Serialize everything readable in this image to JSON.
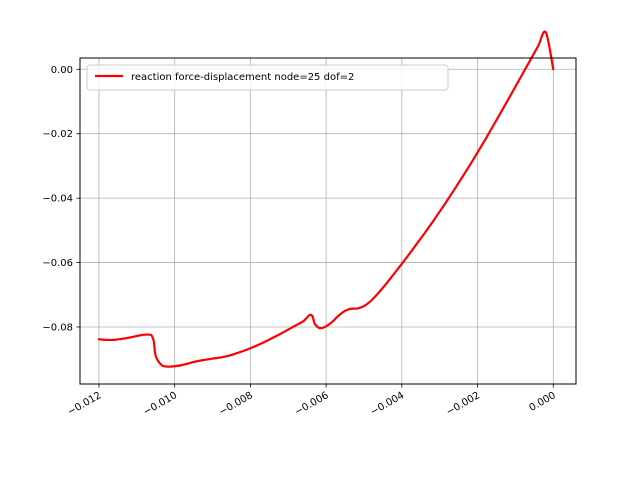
{
  "chart_data": {
    "type": "line",
    "title": "",
    "xlabel": "",
    "ylabel": "",
    "xlim": [
      -0.0125,
      0.0006
    ],
    "ylim": [
      -0.0977,
      0.0035
    ],
    "xticks": [
      -0.012,
      -0.01,
      -0.008,
      -0.006,
      -0.004,
      -0.002,
      0.0
    ],
    "xtick_labels": [
      "−0.012",
      "−0.010",
      "−0.008",
      "−0.006",
      "−0.004",
      "−0.002",
      "0.000"
    ],
    "yticks": [
      0.0,
      -0.02,
      -0.04,
      -0.06,
      -0.08
    ],
    "ytick_labels": [
      "0.00",
      "−0.02",
      "−0.04",
      "−0.06",
      "−0.08"
    ],
    "grid": true,
    "legend": "upper left",
    "series": [
      {
        "name": "reaction force-displacement node=25 dof=2",
        "color": "#ff0000",
        "x": [
          -0.012,
          -0.0118,
          -0.0116,
          -0.0114,
          -0.0112,
          -0.011,
          -0.0108,
          -0.01065,
          -0.0106,
          -0.01055,
          -0.0105,
          -0.01035,
          -0.0102,
          -0.01,
          -0.0098,
          -0.0096,
          -0.0094,
          -0.0092,
          -0.009,
          -0.0088,
          -0.0086,
          -0.0084,
          -0.0082,
          -0.008,
          -0.0078,
          -0.0076,
          -0.0074,
          -0.0072,
          -0.007,
          -0.0068,
          -0.0066,
          -0.0065,
          -0.00645,
          -0.0064,
          -0.00635,
          -0.0063,
          -0.0062,
          -0.0061,
          -0.006,
          -0.0059,
          -0.0058,
          -0.0057,
          -0.0056,
          -0.0055,
          -0.0054,
          -0.0053,
          -0.0052,
          -0.0051,
          -0.005,
          -0.0049,
          -0.0048,
          -0.0047,
          -0.0046,
          -0.0045,
          -0.0044,
          -0.0042,
          -0.004,
          -0.0038,
          -0.0036,
          -0.0034,
          -0.0032,
          -0.003,
          -0.0028,
          -0.0026,
          -0.0024,
          -0.0022,
          -0.002,
          -0.0018,
          -0.0016,
          -0.0014,
          -0.0012,
          -0.001,
          -0.0008,
          -0.0006,
          -0.0004,
          -0.0002,
          0.0
        ],
        "y": [
          -0.0838,
          -0.084,
          -0.084,
          -0.0837,
          -0.0833,
          -0.0828,
          -0.0824,
          -0.0824,
          -0.0828,
          -0.0845,
          -0.089,
          -0.0918,
          -0.0923,
          -0.0922,
          -0.0918,
          -0.0912,
          -0.0906,
          -0.0902,
          -0.0898,
          -0.0895,
          -0.089,
          -0.0883,
          -0.0875,
          -0.0866,
          -0.0856,
          -0.0845,
          -0.0833,
          -0.0821,
          -0.0808,
          -0.0795,
          -0.0782,
          -0.077,
          -0.0764,
          -0.0762,
          -0.077,
          -0.079,
          -0.0802,
          -0.0803,
          -0.0798,
          -0.079,
          -0.078,
          -0.0768,
          -0.0758,
          -0.075,
          -0.0745,
          -0.0743,
          -0.0743,
          -0.074,
          -0.0735,
          -0.0727,
          -0.0717,
          -0.0705,
          -0.0692,
          -0.0678,
          -0.0664,
          -0.0634,
          -0.0604,
          -0.0573,
          -0.0541,
          -0.0509,
          -0.0476,
          -0.0442,
          -0.0407,
          -0.0371,
          -0.0334,
          -0.0297,
          -0.0258,
          -0.0219,
          -0.0178,
          -0.0137,
          -0.0096,
          -0.0054,
          -0.0012,
          0.003,
          0.0072,
          0.0115,
          0.0
        ]
      }
    ]
  }
}
